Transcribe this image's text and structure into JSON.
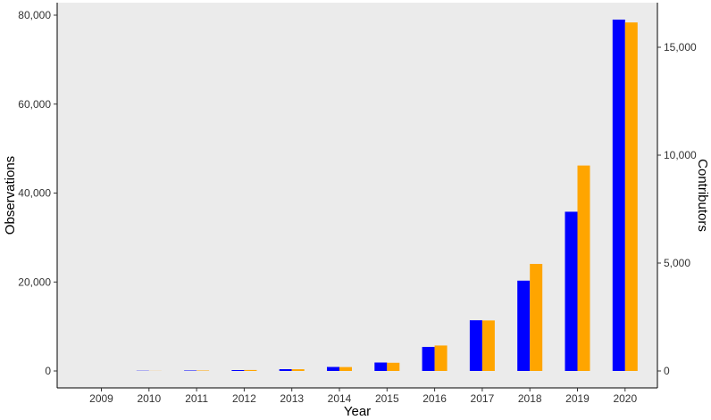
{
  "chart_data": {
    "type": "bar",
    "xlabel": "Year",
    "ylabel_left": "Observations",
    "ylabel_right": "Contributors",
    "categories": [
      "2009",
      "2010",
      "2011",
      "2012",
      "2013",
      "2014",
      "2015",
      "2016",
      "2017",
      "2018",
      "2019",
      "2020"
    ],
    "series": [
      {
        "axis": "left",
        "color": "#0000ff",
        "values": [
          0,
          50,
          100,
          200,
          400,
          900,
          1900,
          5400,
          11400,
          20300,
          35800,
          79000
        ]
      },
      {
        "axis": "right",
        "color": "#ffa500",
        "values": [
          0,
          5,
          20,
          45,
          80,
          180,
          380,
          1180,
          2340,
          4960,
          9520,
          16150
        ]
      }
    ],
    "ylim_left": [
      0,
      80000
    ],
    "ylim_right": [
      0,
      16300
    ],
    "yticks_left": [
      {
        "value": 0,
        "label": "0"
      },
      {
        "value": 20000,
        "label": "20,000"
      },
      {
        "value": 40000,
        "label": "40,000"
      },
      {
        "value": 60000,
        "label": "60,000"
      },
      {
        "value": 80000,
        "label": "80,000"
      }
    ],
    "yticks_right": [
      {
        "value": 0,
        "label": "0"
      },
      {
        "value": 5000,
        "label": "5,000"
      },
      {
        "value": 10000,
        "label": "10,000"
      },
      {
        "value": 15000,
        "label": "15,000"
      }
    ],
    "panel_color": "#ebebeb",
    "grid": false,
    "legend": "none"
  }
}
